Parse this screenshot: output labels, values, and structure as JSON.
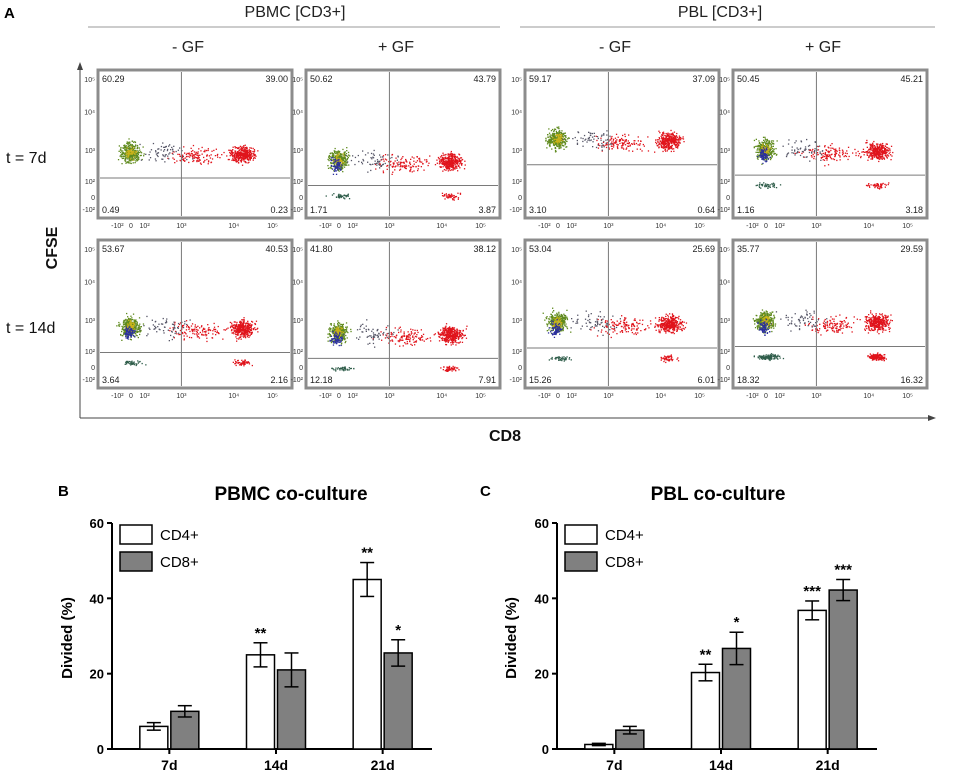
{
  "panel_a": {
    "letter": "A",
    "group_titles": [
      "PBMC [CD3+]",
      "PBL [CD3+]"
    ],
    "conditions": [
      "- GF",
      "+ GF",
      "- GF",
      "+ GF"
    ],
    "time_labels": [
      "t = 7d",
      "t = 14d"
    ],
    "y_axis_label": "CFSE",
    "x_axis_label": "CD8",
    "x_tick_labels": [
      "-10²",
      "0",
      "10²",
      "10³",
      "10⁴",
      "10⁵"
    ],
    "y_tick_labels": [
      "10⁵",
      "10⁴",
      "10³",
      "10²",
      "0",
      "-10²"
    ],
    "quadrants": [
      [
        {
          "ul": "60.29",
          "ur": "39.00",
          "ll": "0.49",
          "lr": "0.23"
        },
        {
          "ul": "50.62",
          "ur": "43.79",
          "ll": "1.71",
          "lr": "3.87"
        },
        {
          "ul": "59.17",
          "ur": "37.09",
          "ll": "3.10",
          "lr": "0.64"
        },
        {
          "ul": "50.45",
          "ur": "45.21",
          "ll": "1.16",
          "lr": "3.18"
        }
      ],
      [
        {
          "ul": "53.67",
          "ur": "40.53",
          "ll": "3.64",
          "lr": "2.16"
        },
        {
          "ul": "41.80",
          "ur": "38.12",
          "ll": "12.18",
          "lr": "7.91"
        },
        {
          "ul": "53.04",
          "ur": "25.69",
          "ll": "15.26",
          "lr": "6.01"
        },
        {
          "ul": "35.77",
          "ur": "29.59",
          "ll": "18.32",
          "lr": "16.32"
        }
      ]
    ]
  },
  "chart_data": [
    {
      "type": "bar",
      "letter": "B",
      "title": "PBMC co-culture",
      "ylabel": "Divided (%)",
      "xlabel": "",
      "ylim": [
        0,
        60
      ],
      "yticks": [
        0,
        20,
        40,
        60
      ],
      "categories": [
        "7d",
        "14d",
        "21d"
      ],
      "legend_position": "top-left",
      "series": [
        {
          "name": "CD4+",
          "color": "#ffffff",
          "values": [
            6,
            25,
            45
          ],
          "errors": [
            1,
            3.2,
            4.5
          ],
          "significance": [
            "",
            "**",
            "**"
          ]
        },
        {
          "name": "CD8+",
          "color": "#808080",
          "values": [
            10,
            21,
            25.5
          ],
          "errors": [
            1.5,
            4.5,
            3.5
          ],
          "significance": [
            "",
            "",
            "*"
          ]
        }
      ]
    },
    {
      "type": "bar",
      "letter": "C",
      "title": "PBL co-culture",
      "ylabel": "Divided (%)",
      "xlabel": "",
      "ylim": [
        0,
        60
      ],
      "yticks": [
        0,
        20,
        40,
        60
      ],
      "categories": [
        "7d",
        "14d",
        "21d"
      ],
      "legend_position": "top-left",
      "series": [
        {
          "name": "CD4+",
          "color": "#ffffff",
          "values": [
            1.2,
            20.3,
            36.8
          ],
          "errors": [
            0.3,
            2.2,
            2.5
          ],
          "significance": [
            "",
            "**",
            "***"
          ]
        },
        {
          "name": "CD8+",
          "color": "#808080",
          "values": [
            5,
            26.7,
            42.2
          ],
          "errors": [
            1,
            4.3,
            2.8
          ],
          "significance": [
            "",
            "*",
            "***"
          ]
        }
      ]
    }
  ],
  "colors": {
    "green": "#5f8a1e",
    "red": "#e0141c",
    "blue": "#2b2f9e",
    "yellow": "#c9b21a",
    "frame": "#8c8c8c",
    "gate": "#7a7a7a"
  }
}
